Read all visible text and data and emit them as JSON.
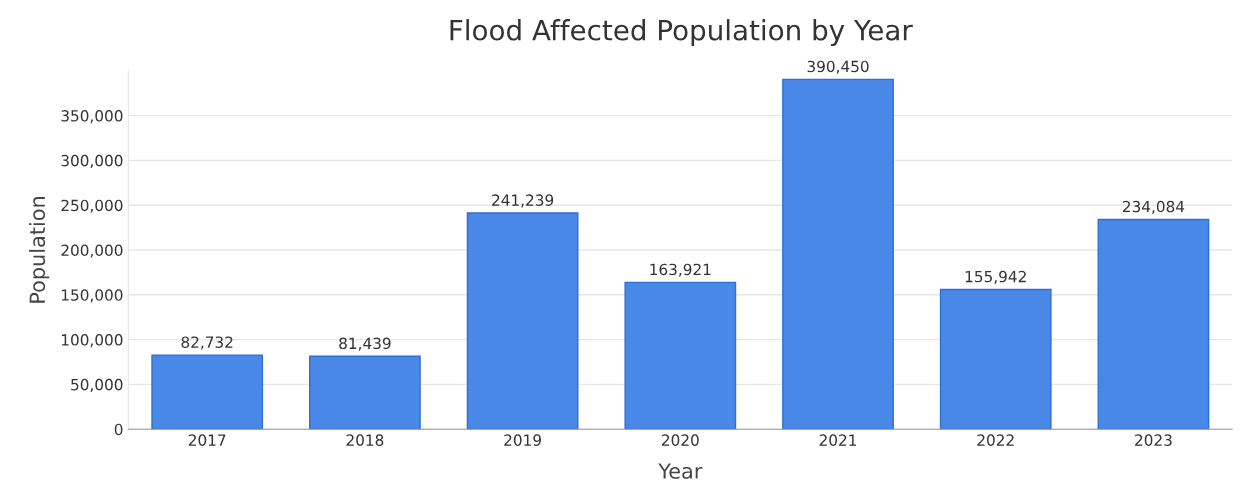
{
  "chart_data": {
    "type": "bar",
    "title": "Flood Affected Population by Year",
    "xlabel": "Year",
    "ylabel": "Population",
    "categories": [
      "2017",
      "2018",
      "2019",
      "2020",
      "2021",
      "2022",
      "2023"
    ],
    "values": [
      82732,
      81439,
      241239,
      163921,
      390450,
      155942,
      234084
    ],
    "value_labels": [
      "82,732",
      "81,439",
      "241,239",
      "163,921",
      "390,450",
      "155,942",
      "234,084"
    ],
    "color": "#4a88e8",
    "ylim": [
      0,
      400000
    ],
    "yticks": [
      {
        "value": 0,
        "label": "0"
      },
      {
        "value": 50000,
        "label": "50,000"
      },
      {
        "value": 100000,
        "label": "100,000"
      },
      {
        "value": 150000,
        "label": "150,000"
      },
      {
        "value": 200000,
        "label": "200,000"
      },
      {
        "value": 250000,
        "label": "250,000"
      },
      {
        "value": 300000,
        "label": "300,000"
      },
      {
        "value": 350000,
        "label": "350,000"
      }
    ],
    "grid": "y",
    "legend": false
  }
}
